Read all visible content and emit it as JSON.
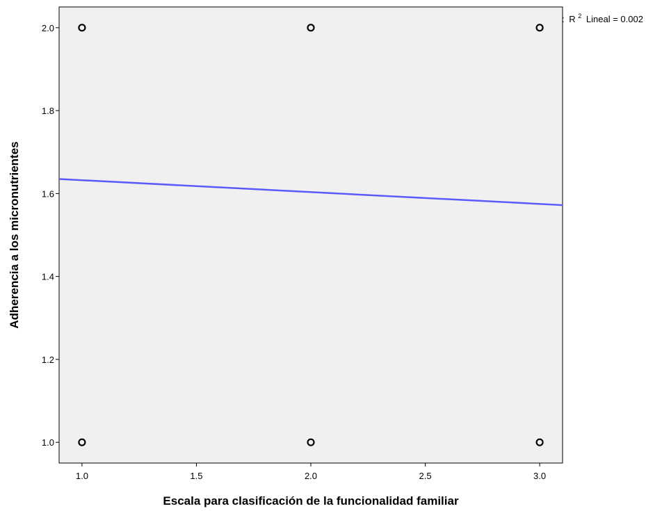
{
  "chart_data": {
    "type": "scatter",
    "title": "",
    "xlabel": "Escala para clasificación de la funcionalidad familiar",
    "ylabel": "Adherencia a los micronutrientes",
    "xlim": [
      0.9,
      3.1
    ],
    "ylim": [
      0.95,
      2.05
    ],
    "xticks": [
      "1.0",
      "1.5",
      "2.0",
      "2.5",
      "3.0"
    ],
    "yticks": [
      "1.0",
      "1.2",
      "1.4",
      "1.6",
      "1.8",
      "2.0"
    ],
    "grid": false,
    "background_color": "#f0f0f0",
    "points": [
      {
        "x": 1,
        "y": 2
      },
      {
        "x": 2,
        "y": 2
      },
      {
        "x": 3,
        "y": 2
      },
      {
        "x": 1,
        "y": 1
      },
      {
        "x": 2,
        "y": 1
      },
      {
        "x": 3,
        "y": 1
      }
    ],
    "fit_line": {
      "kind": "linear",
      "x": [
        0.9,
        3.1
      ],
      "y": [
        1.635,
        1.572
      ],
      "color": "#5a5aff"
    },
    "legend": {
      "placement": "top-right",
      "prefix": ":",
      "r_label": "R",
      "superscript": "2",
      "text": "Lineal = 0.002"
    }
  }
}
